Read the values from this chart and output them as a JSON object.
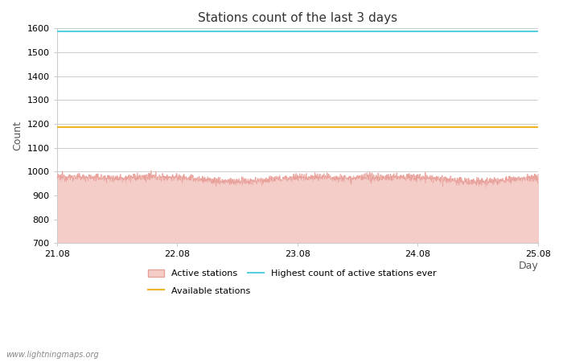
{
  "title": "Stations count of the last 3 days",
  "xlabel": "Day",
  "ylabel": "Count",
  "ylim": [
    700,
    1600
  ],
  "yticks": [
    700,
    800,
    900,
    1000,
    1100,
    1200,
    1300,
    1400,
    1500,
    1600
  ],
  "x_start": 21.08,
  "x_end": 25.08,
  "xtick_positions": [
    21.08,
    22.08,
    23.08,
    24.08,
    25.08
  ],
  "xtick_labels": [
    "21.08",
    "22.08",
    "23.08",
    "24.08",
    "25.08"
  ],
  "highest_ever_value": 1586,
  "available_stations_value": 1185,
  "active_stations_mean": 970,
  "active_fill_color": "#f5cdc8",
  "active_line_color": "#e8a09a",
  "highest_ever_color": "#56d0e0",
  "available_stations_color": "#f0b429",
  "background_color": "#ffffff",
  "grid_color": "#cccccc",
  "watermark": "www.lightningmaps.org",
  "title_fontsize": 11,
  "axis_label_fontsize": 9,
  "tick_fontsize": 8,
  "watermark_fontsize": 7,
  "num_points": 2000
}
